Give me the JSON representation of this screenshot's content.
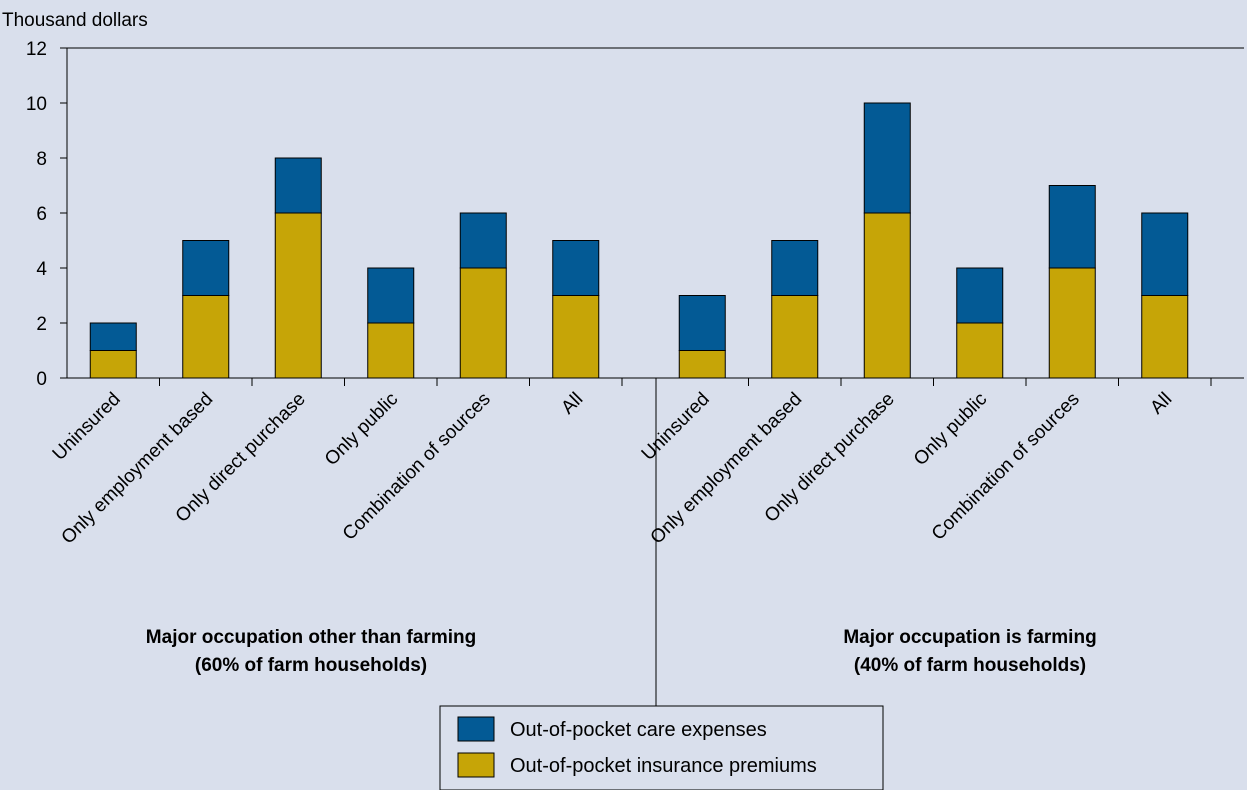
{
  "chart_data": {
    "type": "bar",
    "stacked": true,
    "ylabel": "Thousand dollars",
    "ylim": [
      0,
      12
    ],
    "yticks": [
      0,
      2,
      4,
      6,
      8,
      10,
      12
    ],
    "categories": [
      "Uninsured",
      "Only employment based",
      "Only direct purchase",
      "Only public",
      "Combination of sources",
      "All"
    ],
    "groups": [
      {
        "title_line1": "Major occupation other than farming",
        "title_line2": "(60% of farm households)",
        "series": [
          {
            "name": "Out-of-pocket insurance premiums",
            "values": [
              1,
              3,
              6,
              2,
              4,
              3
            ]
          },
          {
            "name": "Out-of-pocket care expenses",
            "values": [
              1,
              2,
              2,
              2,
              2,
              2
            ]
          }
        ]
      },
      {
        "title_line1": "Major occupation is farming",
        "title_line2": "(40% of farm households)",
        "series": [
          {
            "name": "Out-of-pocket insurance premiums",
            "values": [
              1,
              3,
              6,
              2,
              4,
              3
            ]
          },
          {
            "name": "Out-of-pocket care expenses",
            "values": [
              2,
              2,
              4,
              2,
              3,
              3
            ]
          }
        ]
      }
    ],
    "legend": [
      {
        "name": "Out-of-pocket care expenses",
        "color": "#035a95"
      },
      {
        "name": "Out-of-pocket insurance premiums",
        "color": "#c6a507"
      }
    ],
    "colors": {
      "premiums": "#c6a507",
      "care": "#035a95",
      "background": "#d9dfec"
    },
    "grid": false,
    "legend_position": "bottom-center"
  }
}
